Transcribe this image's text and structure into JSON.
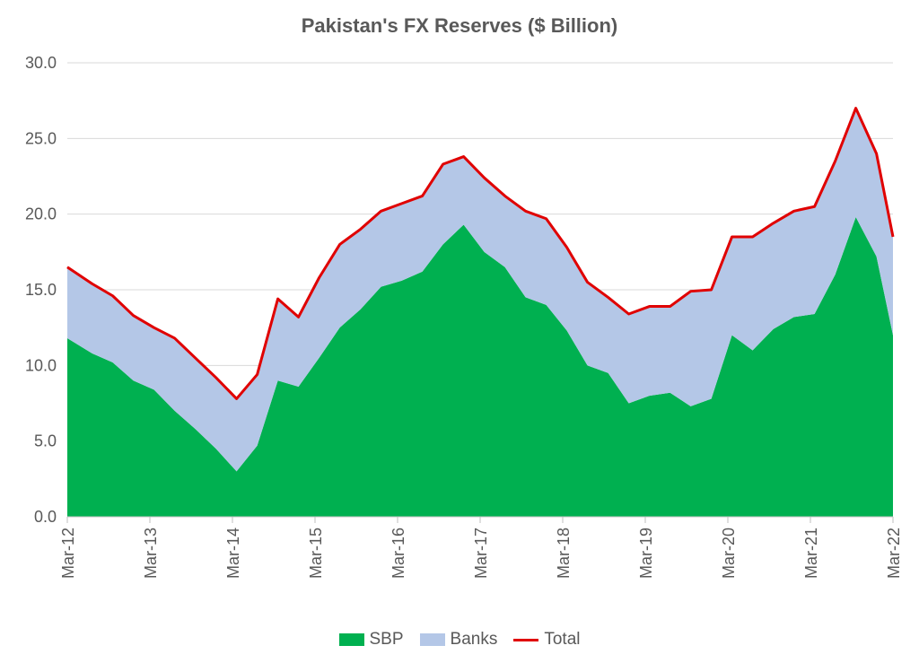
{
  "chart_data": {
    "type": "area",
    "title": "Pakistan's FX Reserves ($ Billion)",
    "xlabel": "",
    "ylabel": "",
    "ylim": [
      0,
      30
    ],
    "yticks": [
      "0.0",
      "5.0",
      "10.0",
      "15.0",
      "20.0",
      "25.0",
      "30.0"
    ],
    "xticks": [
      "Mar-12",
      "Mar-13",
      "Mar-14",
      "Mar-15",
      "Mar-16",
      "Mar-17",
      "Mar-18",
      "Mar-19",
      "Mar-20",
      "Mar-21",
      "Mar-22"
    ],
    "x": [
      2012.2,
      2012.5,
      2012.75,
      2013.0,
      2013.25,
      2013.5,
      2013.75,
      2014.0,
      2014.25,
      2014.5,
      2014.75,
      2015.0,
      2015.25,
      2015.5,
      2015.75,
      2016.0,
      2016.25,
      2016.5,
      2016.75,
      2017.0,
      2017.25,
      2017.5,
      2017.75,
      2018.0,
      2018.25,
      2018.5,
      2018.75,
      2019.0,
      2019.25,
      2019.5,
      2019.75,
      2020.0,
      2020.25,
      2020.5,
      2020.75,
      2021.0,
      2021.25,
      2021.5,
      2021.75,
      2022.0,
      2022.2
    ],
    "series": [
      {
        "name": "SBP",
        "color": "#00b050",
        "values": [
          11.8,
          10.8,
          10.2,
          9.0,
          8.4,
          7.0,
          5.8,
          4.5,
          3.0,
          4.7,
          9.0,
          8.6,
          10.5,
          12.5,
          13.7,
          15.2,
          15.6,
          16.2,
          18.0,
          19.3,
          17.5,
          16.5,
          14.5,
          14.0,
          12.3,
          10.0,
          9.5,
          7.5,
          8.0,
          8.2,
          7.3,
          7.8,
          12.0,
          11.0,
          12.4,
          13.2,
          13.4,
          16.0,
          19.8,
          17.2,
          12.0
        ]
      },
      {
        "name": "Banks",
        "color": "#b4c7e7",
        "values": [
          4.7,
          4.6,
          4.4,
          4.3,
          4.1,
          4.8,
          4.7,
          4.7,
          4.8,
          4.7,
          5.4,
          4.6,
          5.3,
          5.5,
          5.3,
          5.0,
          5.1,
          5.0,
          5.3,
          4.5,
          4.9,
          4.7,
          5.7,
          5.7,
          5.5,
          5.5,
          5.0,
          5.9,
          5.9,
          5.7,
          7.6,
          7.2,
          6.5,
          7.5,
          7.0,
          7.0,
          7.1,
          7.5,
          7.2,
          6.8,
          6.5
        ]
      },
      {
        "name": "Total",
        "color": "#e00000",
        "values": [
          16.5,
          15.4,
          14.6,
          13.3,
          12.5,
          11.8,
          10.5,
          9.2,
          7.8,
          9.4,
          14.4,
          13.2,
          15.8,
          18.0,
          19.0,
          20.2,
          20.7,
          21.2,
          23.3,
          23.8,
          22.4,
          21.2,
          20.2,
          19.7,
          17.8,
          15.5,
          14.5,
          13.4,
          13.9,
          13.9,
          14.9,
          15.0,
          18.5,
          18.5,
          19.4,
          20.2,
          20.5,
          23.5,
          27.0,
          24.0,
          18.5
        ]
      }
    ],
    "legend": {
      "placement": "bottom",
      "entries": [
        "SBP",
        "Banks",
        "Total"
      ]
    }
  }
}
